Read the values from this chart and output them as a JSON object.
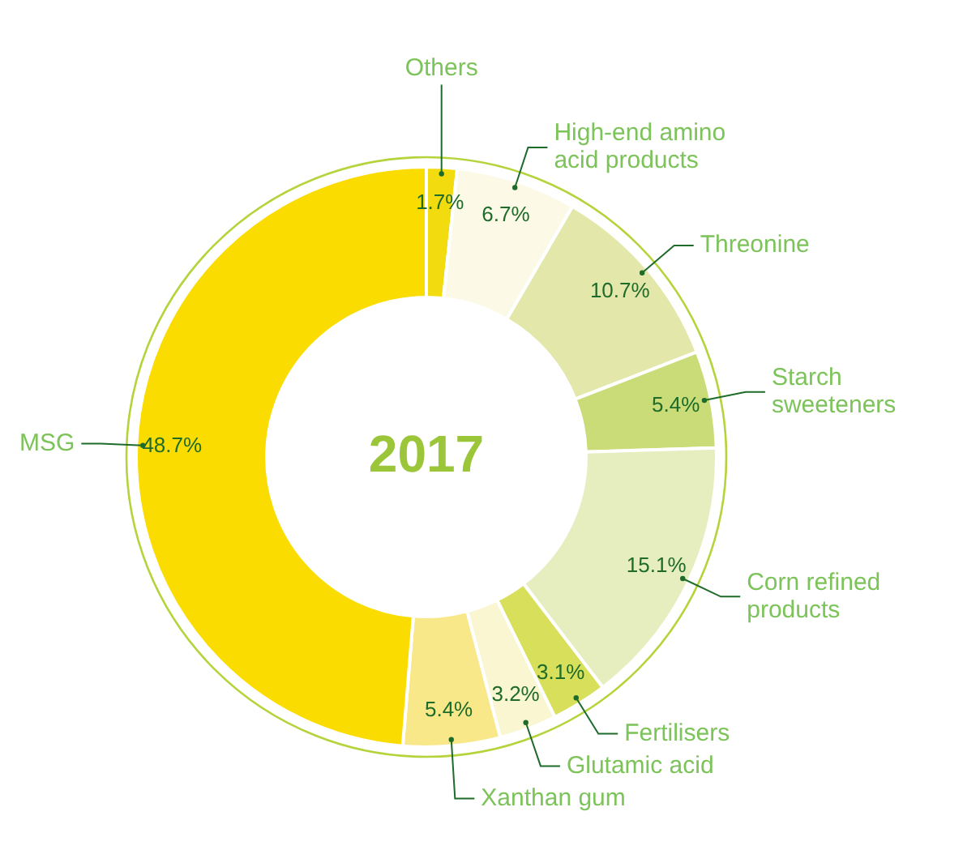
{
  "chart_data": {
    "type": "donut",
    "title": "2017",
    "categories": [
      "Others",
      "High-end amino acid products",
      "Threonine",
      "Starch sweeteners",
      "Corn refined products",
      "Fertilisers",
      "Glutamic acid",
      "Xanthan gum",
      "MSG"
    ],
    "values": [
      1.7,
      6.7,
      10.7,
      5.4,
      15.1,
      3.1,
      3.2,
      5.4,
      48.7
    ],
    "colors": [
      "#f2dc10",
      "#fcfae6",
      "#e3e8aa",
      "#c9dc78",
      "#e6eec0",
      "#d8df5a",
      "#faf6d2",
      "#f8e88a",
      "#fbdc00"
    ],
    "value_labels": [
      "1.7%",
      "6.7%",
      "10.7%",
      "5.4%",
      "15.1%",
      "3.1%",
      "3.2%",
      "5.4%",
      "48.7%"
    ],
    "legend": false
  }
}
